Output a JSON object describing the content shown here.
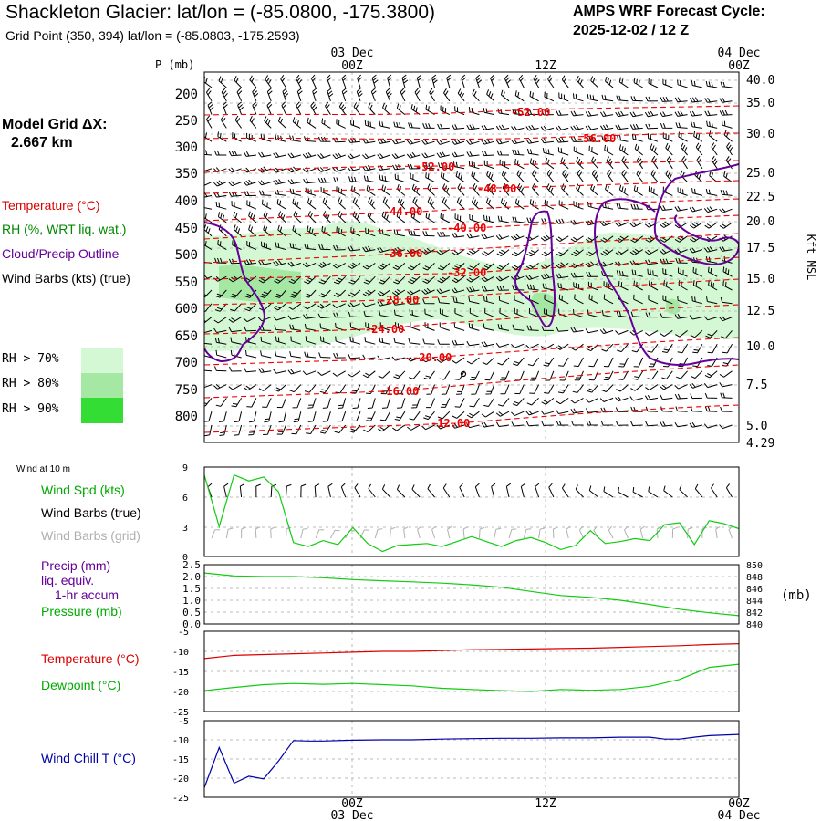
{
  "header": {
    "title": "Shackleton Glacier:  lat/lon = (-85.0800, -175.3800)",
    "subtitle": "Grid Point (350, 394) lat/lon = (-85.0803, -175.2593)",
    "forecast_cycle_line1": "AMPS WRF Forecast Cycle:",
    "forecast_cycle_line2": "2025-12-02 / 12  Z"
  },
  "model_grid": {
    "line1": "Model Grid ΔX:",
    "line2": "2.667 km"
  },
  "legend": {
    "temperature": "Temperature (°C)",
    "rh": "RH (%, WRT liq. wat.)",
    "cloud": "Cloud/Precip Outline",
    "wind": "Wind Barbs (kts) (true)",
    "rh70": "RH > 70%",
    "rh80": "RH > 80%",
    "rh90": "RH > 90%",
    "rh_colors": [
      "#d4f8d4",
      "#a4e8a4",
      "#33dd33"
    ]
  },
  "time_axis": {
    "top_dates": [
      {
        "label": "03 Dec",
        "at": "00Z"
      },
      {
        "label": "04 Dec",
        "at": "00Z"
      }
    ],
    "top_times": [
      "00Z",
      "12Z",
      "00Z"
    ],
    "bottom_times": [
      "00Z",
      "12Z",
      "00Z"
    ],
    "bottom_dates": [
      "03 Dec",
      "04 Dec"
    ]
  },
  "colors": {
    "temperature": "#ee0000",
    "cloud_outline": "#660099",
    "rh_text": "#008800",
    "precip_text": "#660099",
    "wind_chill": "#0000aa",
    "grid_barbs": "#b0b0b0"
  },
  "chart_data": [
    {
      "type": "heatmap",
      "name": "time-height cross section",
      "x_range_hours_from_start": [
        0,
        36
      ],
      "ylabel": "P (mb)",
      "ylabel_right": "Kft MSL",
      "pressure_ticks": [
        "200",
        "250",
        "300",
        "350",
        "400",
        "450",
        "500",
        "550",
        "600",
        "650",
        "700",
        "750",
        "800"
      ],
      "height_ticks_kft": [
        "40.0",
        "35.0",
        "30.0",
        "25.0",
        "22.5",
        "20.0",
        "17.5",
        "15.0",
        "12.5",
        "10.0",
        "7.5",
        "5.0",
        "4.29"
      ],
      "temperature_contour_labels": [
        "-52.00",
        "-56.00",
        "-52.00",
        "-48.00",
        "-44.00",
        "-40.00",
        "-36.00",
        "-32.00",
        "-28.00",
        "-24.00",
        "-20.00",
        "-16.00",
        "-12.00"
      ]
    },
    {
      "type": "line",
      "name": "10 m wind",
      "panel_label": "Wind at 10 m",
      "labels": [
        "Wind Spd (kts)",
        "Wind Barbs (true)",
        "Wind Barbs (grid)"
      ],
      "y_ticks": [
        "9",
        "6",
        "3",
        "0"
      ],
      "ylim": [
        0,
        9
      ],
      "x": [
        0,
        1,
        2,
        3,
        4,
        5,
        6,
        7,
        8,
        9,
        10,
        11,
        12,
        13,
        14,
        15,
        16,
        17,
        18,
        19,
        20,
        21,
        22,
        23,
        24,
        25,
        26,
        27,
        28,
        29,
        30,
        31,
        32,
        33,
        34,
        35,
        36
      ],
      "series": [
        {
          "name": "Wind Spd (kts)",
          "values": [
            8.2,
            3.0,
            8.2,
            7.6,
            8.0,
            6.5,
            1.4,
            1.0,
            1.6,
            1.2,
            2.9,
            1.3,
            0.5,
            1.1,
            1.2,
            1.3,
            1.0,
            1.5,
            2.0,
            1.5,
            1.0,
            1.6,
            1.9,
            1.4,
            0.7,
            1.1,
            2.6,
            1.3,
            1.5,
            1.8,
            1.6,
            3.2,
            3.4,
            1.2,
            3.6,
            3.3,
            2.8
          ]
        }
      ]
    },
    {
      "type": "line",
      "name": "precip and pressure",
      "labels": [
        "Precip (mm)",
        "liq. equiv.",
        "1-hr accum",
        "Pressure (mb)"
      ],
      "y_ticks_left": [
        "2.5",
        "2.0",
        "1.5",
        "1.0",
        "0.5",
        "0.0"
      ],
      "y_ticks_right": [
        "850",
        "848",
        "846",
        "844",
        "842",
        "840"
      ],
      "ylabel_right": "(mb)",
      "ylim_left": [
        0,
        2.5
      ],
      "ylim_right": [
        840,
        850
      ],
      "x": [
        0,
        2,
        4,
        6,
        8,
        10,
        12,
        14,
        16,
        18,
        20,
        22,
        24,
        26,
        28,
        30,
        32,
        34,
        36
      ],
      "series": [
        {
          "name": "Pressure (mb)",
          "values": [
            848.6,
            848.1,
            848.0,
            848.0,
            847.8,
            847.5,
            847.3,
            847.1,
            846.9,
            846.6,
            846.2,
            845.5,
            844.8,
            844.5,
            844.0,
            843.3,
            842.5,
            841.9,
            841.4
          ]
        }
      ]
    },
    {
      "type": "line",
      "name": "temperature and dewpoint",
      "labels": [
        "Temperature (°C)",
        "Dewpoint (°C)"
      ],
      "y_ticks": [
        "-5",
        "-10",
        "-15",
        "-20",
        "-25"
      ],
      "ylim": [
        -25,
        -5
      ],
      "x": [
        0,
        2,
        4,
        6,
        8,
        10,
        12,
        14,
        16,
        18,
        20,
        22,
        24,
        26,
        28,
        30,
        32,
        34,
        36
      ],
      "series": [
        {
          "name": "Temperature (°C)",
          "values": [
            -11.8,
            -11.0,
            -10.8,
            -10.6,
            -10.4,
            -10.2,
            -10.0,
            -10.0,
            -9.8,
            -9.6,
            -9.5,
            -9.4,
            -9.3,
            -9.2,
            -9.0,
            -8.8,
            -8.6,
            -8.3,
            -8.1
          ]
        },
        {
          "name": "Dewpoint (°C)",
          "values": [
            -19.8,
            -19.0,
            -18.3,
            -18.0,
            -18.2,
            -18.0,
            -18.3,
            -18.6,
            -19.2,
            -19.5,
            -19.8,
            -20.0,
            -19.5,
            -19.7,
            -19.5,
            -18.7,
            -17.0,
            -14.0,
            -13.2
          ]
        }
      ]
    },
    {
      "type": "line",
      "name": "wind chill",
      "labels": [
        "Wind Chill T (°C)"
      ],
      "y_ticks": [
        "-5",
        "-10",
        "-15",
        "-20",
        "-25"
      ],
      "ylim": [
        -25,
        -5
      ],
      "x": [
        0,
        1,
        2,
        3,
        4,
        5,
        6,
        7,
        8,
        10,
        12,
        14,
        16,
        18,
        20,
        22,
        24,
        26,
        28,
        30,
        31,
        32,
        33,
        34,
        36
      ],
      "series": [
        {
          "name": "Wind Chill T (°C)",
          "values": [
            -22.5,
            -12.0,
            -21.3,
            -19.5,
            -20.2,
            -15.5,
            -10.2,
            -10.3,
            -10.3,
            -10.1,
            -10.0,
            -10.0,
            -9.8,
            -9.7,
            -9.6,
            -9.6,
            -9.5,
            -9.5,
            -9.3,
            -9.3,
            -9.8,
            -9.8,
            -9.3,
            -8.9,
            -8.6
          ]
        }
      ]
    }
  ]
}
